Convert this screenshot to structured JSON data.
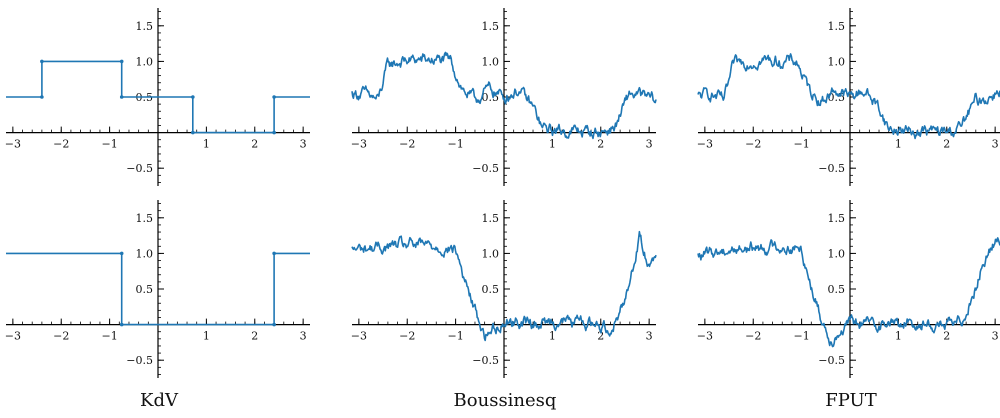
{
  "figure": {
    "column_titles": [
      "KdV",
      "Boussinesq",
      "FPUT"
    ]
  },
  "chart_data": [
    {
      "type": "line",
      "row": 0,
      "col": 0,
      "column_title": "KdV",
      "xlim": [
        -3.14159,
        3.14159
      ],
      "ylim": [
        -0.75,
        1.75
      ],
      "xticks": [
        -3,
        -2,
        -1,
        1,
        2,
        3
      ],
      "xtick_labels": [
        "−3",
        "−2",
        "−1",
        "1",
        "2",
        "3"
      ],
      "yticks": [
        -0.5,
        0.5,
        1.0,
        1.5
      ],
      "ytick_labels": [
        "−0.5",
        "0.5",
        "1.0",
        "1.5"
      ],
      "grid": false,
      "line_color": "#1f77b4",
      "series": [
        {
          "x": [
            -3.14159,
            -2.4,
            -2.4,
            -0.75,
            -0.75,
            0.72,
            0.72,
            2.4,
            2.4,
            3.14159
          ],
          "y": [
            0.5,
            0.5,
            1.0,
            1.0,
            0.5,
            0.5,
            0.0,
            0.0,
            0.5,
            0.5
          ]
        }
      ]
    },
    {
      "type": "line",
      "row": 0,
      "col": 1,
      "column_title": "Boussinesq",
      "xlim": [
        -3.14159,
        3.14159
      ],
      "ylim": [
        -0.75,
        1.75
      ],
      "xticks": [
        -3,
        -2,
        -1,
        1,
        2,
        3
      ],
      "xtick_labels": [
        "−3",
        "−2",
        "−1",
        "1",
        "2",
        "3"
      ],
      "yticks": [
        -0.5,
        0.5,
        1.0,
        1.5
      ],
      "ytick_labels": [
        "−0.5",
        "0.5",
        "1.0",
        "1.5"
      ],
      "grid": false,
      "line_color": "#1f77b4",
      "series": [
        {
          "x": [
            -3.14,
            -2.9,
            -2.6,
            -2.4,
            -2.1,
            -1.8,
            -1.4,
            -1.1,
            -0.85,
            -0.6,
            -0.3,
            0.0,
            0.3,
            0.6,
            0.8,
            1.2,
            1.6,
            2.0,
            2.3,
            2.6,
            2.9,
            3.14
          ],
          "y": [
            0.55,
            0.55,
            0.45,
            0.95,
            1.0,
            1.02,
            1.02,
            1.0,
            0.6,
            0.45,
            0.62,
            0.5,
            0.6,
            0.35,
            0.05,
            0.02,
            0.02,
            0.0,
            0.08,
            0.55,
            0.5,
            0.45
          ]
        }
      ]
    },
    {
      "type": "line",
      "row": 0,
      "col": 2,
      "column_title": "FPUT",
      "xlim": [
        -3.14159,
        3.14159
      ],
      "ylim": [
        -0.75,
        1.75
      ],
      "xticks": [
        -3,
        -2,
        -1,
        1,
        2,
        3
      ],
      "xtick_labels": [
        "−3",
        "−2",
        "−1",
        "1",
        "2",
        "3"
      ],
      "yticks": [
        -0.5,
        0.5,
        1.0,
        1.5
      ],
      "ytick_labels": [
        "−0.5",
        "0.5",
        "1.0",
        "1.5"
      ],
      "grid": false,
      "line_color": "#1f77b4",
      "series": [
        {
          "x": [
            -3.14,
            -2.9,
            -2.6,
            -2.4,
            -2.1,
            -1.8,
            -1.4,
            -1.1,
            -0.85,
            -0.6,
            -0.3,
            0.0,
            0.3,
            0.6,
            0.8,
            1.2,
            1.6,
            2.0,
            2.3,
            2.6,
            2.9,
            3.14
          ],
          "y": [
            0.5,
            0.55,
            0.45,
            0.95,
            1.0,
            1.02,
            1.0,
            1.0,
            0.6,
            0.45,
            0.6,
            0.5,
            0.6,
            0.35,
            0.05,
            0.02,
            0.02,
            0.0,
            0.08,
            0.45,
            0.5,
            0.65
          ]
        }
      ]
    },
    {
      "type": "line",
      "row": 1,
      "col": 0,
      "column_title": "KdV",
      "xlim": [
        -3.14159,
        3.14159
      ],
      "ylim": [
        -0.75,
        1.75
      ],
      "xticks": [
        -3,
        -2,
        -1,
        1,
        2,
        3
      ],
      "xtick_labels": [
        "−3",
        "−2",
        "−1",
        "1",
        "2",
        "3"
      ],
      "yticks": [
        -0.5,
        0.5,
        1.0,
        1.5
      ],
      "ytick_labels": [
        "−0.5",
        "0.5",
        "1.0",
        "1.5"
      ],
      "grid": false,
      "line_color": "#1f77b4",
      "series": [
        {
          "x": [
            -3.14159,
            -0.75,
            -0.75,
            2.4,
            2.4,
            3.14159
          ],
          "y": [
            1.0,
            1.0,
            0.0,
            0.0,
            1.0,
            1.0
          ]
        }
      ]
    },
    {
      "type": "line",
      "row": 1,
      "col": 1,
      "column_title": "Boussinesq",
      "xlim": [
        -3.14159,
        3.14159
      ],
      "ylim": [
        -0.75,
        1.75
      ],
      "xticks": [
        -3,
        -2,
        -1,
        1,
        2,
        3
      ],
      "xtick_labels": [
        "−3",
        "−2",
        "−1",
        "1",
        "2",
        "3"
      ],
      "yticks": [
        -0.5,
        0.5,
        1.0,
        1.5
      ],
      "ytick_labels": [
        "−0.5",
        "0.5",
        "1.0",
        "1.5"
      ],
      "grid": false,
      "line_color": "#1f77b4",
      "series": [
        {
          "x": [
            -3.14,
            -2.6,
            -2.0,
            -1.4,
            -1.0,
            -0.8,
            -0.6,
            -0.4,
            0.0,
            0.6,
            1.2,
            1.8,
            2.2,
            2.35,
            2.6,
            2.8,
            2.95,
            3.14
          ],
          "y": [
            1.05,
            1.08,
            1.12,
            1.1,
            1.05,
            0.6,
            0.2,
            -0.15,
            0.05,
            0.02,
            0.05,
            0.02,
            -0.05,
            0.1,
            0.6,
            1.25,
            0.9,
            1.0
          ]
        }
      ]
    },
    {
      "type": "line",
      "row": 1,
      "col": 2,
      "column_title": "FPUT",
      "xlim": [
        -3.14159,
        3.14159
      ],
      "ylim": [
        -0.75,
        1.75
      ],
      "xticks": [
        -3,
        -2,
        -1,
        1,
        2,
        3
      ],
      "xtick_labels": [
        "−3",
        "−2",
        "−1",
        "1",
        "2",
        "3"
      ],
      "yticks": [
        -0.5,
        0.5,
        1.0,
        1.5
      ],
      "ytick_labels": [
        "−0.5",
        "0.5",
        "1.0",
        "1.5"
      ],
      "grid": false,
      "line_color": "#1f77b4",
      "series": [
        {
          "x": [
            -3.14,
            -2.6,
            -2.0,
            -1.4,
            -1.0,
            -0.8,
            -0.6,
            -0.4,
            0.0,
            0.6,
            1.2,
            1.8,
            2.2,
            2.35,
            2.6,
            2.8,
            2.95,
            3.14
          ],
          "y": [
            0.95,
            1.05,
            1.08,
            1.1,
            1.05,
            0.55,
            0.1,
            -0.2,
            0.02,
            0.02,
            0.02,
            0.0,
            0.0,
            0.1,
            0.55,
            0.95,
            1.1,
            1.25
          ]
        }
      ]
    }
  ]
}
